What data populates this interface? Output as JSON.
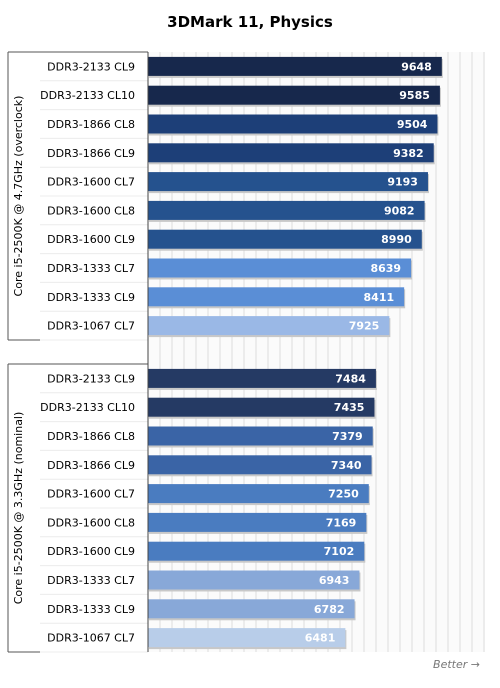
{
  "chart_data": {
    "type": "bar",
    "orientation": "horizontal",
    "title": "3DMark 11, Physics",
    "xlim": [
      0,
      11000
    ],
    "grid": "vertical",
    "note": "Better →",
    "groups": [
      {
        "label": "Core i5-2500K @ 4.7GHz (overclock)",
        "categories": [
          "DDR3-2133 CL9",
          "DDR3-2133 CL10",
          "DDR3-1866 CL8",
          "DDR3-1866 CL9",
          "DDR3-1600 CL7",
          "DDR3-1600 CL8",
          "DDR3-1600 CL9",
          "DDR3-1333 CL7",
          "DDR3-1333 CL9",
          "DDR3-1067 CL7"
        ],
        "values": [
          9648,
          9585,
          9504,
          9382,
          9193,
          9082,
          8990,
          8639,
          8411,
          7925
        ],
        "colors": [
          "#17284c",
          "#17284c",
          "#1d3f78",
          "#1d3f78",
          "#25528e",
          "#25528e",
          "#25528e",
          "#5a8ed6",
          "#5a8ed6",
          "#9ab8e6"
        ]
      },
      {
        "label": "Core i5-2500K @ 3.3GHz (nominal)",
        "categories": [
          "DDR3-2133 CL9",
          "DDR3-2133 CL10",
          "DDR3-1866 CL8",
          "DDR3-1866 CL9",
          "DDR3-1600 CL7",
          "DDR3-1600 CL8",
          "DDR3-1600 CL9",
          "DDR3-1333 CL7",
          "DDR3-1333 CL9",
          "DDR3-1067 CL7"
        ],
        "values": [
          7484,
          7435,
          7379,
          7340,
          7250,
          7169,
          7102,
          6943,
          6782,
          6481
        ],
        "colors": [
          "#253a64",
          "#253a64",
          "#3a64a6",
          "#3a64a6",
          "#4a7cc0",
          "#4a7cc0",
          "#4a7cc0",
          "#88a8d8",
          "#88a8d8",
          "#b8cde9"
        ]
      }
    ]
  }
}
